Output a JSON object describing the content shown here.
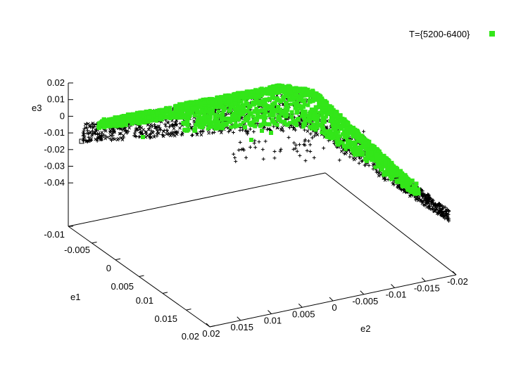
{
  "chart_data": {
    "type": "scatter",
    "title": "",
    "grid": false,
    "legend_position": "top-right",
    "colors": {
      "background": "#ffffff",
      "axis": "#000000",
      "series_green": "#33e619",
      "series_black": "#000000"
    },
    "axes": {
      "x": {
        "label": "e2",
        "ticks": [
          "0.02",
          "0.015",
          "0.01",
          "0.005",
          "0",
          "-0.005",
          "-0.01",
          "-0.015",
          "-0.02"
        ],
        "range": [
          0.02,
          -0.02
        ]
      },
      "y": {
        "label": "e1",
        "ticks": [
          "-0.01",
          "-0.005",
          "0",
          "0.005",
          "0.01",
          "0.015",
          "0.02"
        ],
        "range": [
          -0.01,
          0.02
        ]
      },
      "z": {
        "label": "e3",
        "ticks": [
          "0.02",
          "0.01",
          "0",
          "-0.01",
          "-0.02",
          "-0.03",
          "-0.04"
        ],
        "floor_label": "-0.01"
      }
    },
    "series": [
      {
        "name": "T={5200-6400}",
        "marker": "filled-square",
        "color": "#33e619"
      },
      {
        "name": "",
        "marker": "plus/cross/star",
        "color": "#000000"
      }
    ]
  }
}
